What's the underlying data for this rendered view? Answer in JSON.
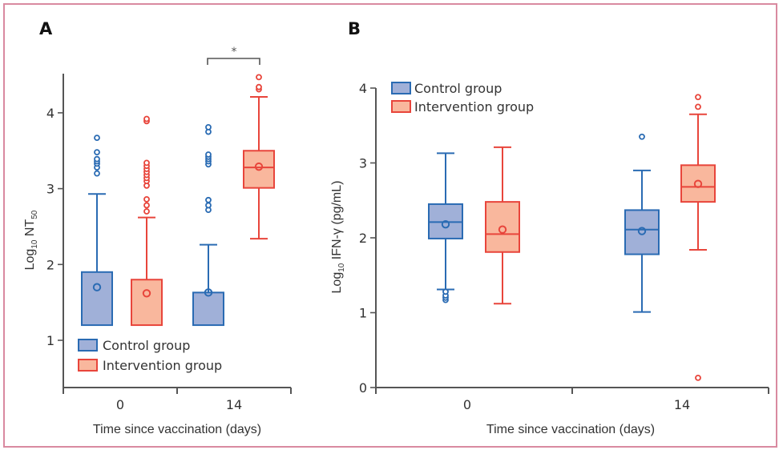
{
  "colors": {
    "control_fill": "#a0b0d8",
    "control_stroke": "#2a6bb3",
    "intervention_fill": "#f9b79d",
    "intervention_stroke": "#e8453b",
    "axis": "#555555",
    "frame": "#d98aa0"
  },
  "chart_data": [
    {
      "panel": "A",
      "type": "box",
      "title": "A",
      "xlabel": "Time since vaccination (days)",
      "ylabel_main": "Log",
      "ylabel_sub": "10",
      "ylabel_main2": " NT",
      "ylabel_sub2": "50",
      "categories": [
        "0",
        "14"
      ],
      "yticks": [
        "1",
        "2",
        "3",
        "4"
      ],
      "ylim": [
        0.35,
        4.55
      ],
      "legend": [
        "Control group",
        "Intervention group"
      ],
      "legend_position": "bottom-left",
      "significance": {
        "between": [
          "Control group 14",
          "Intervention group 14"
        ],
        "label": "*"
      },
      "series": [
        {
          "name": "Control group",
          "boxes": [
            {
              "category": "0",
              "whisker_low": 1.2,
              "q1": 1.2,
              "median": 1.2,
              "q3": 1.9,
              "whisker_high": 2.93,
              "mean": 1.7,
              "outliers": [
                3.2,
                3.28,
                3.33,
                3.36,
                3.39,
                3.48,
                3.67
              ]
            },
            {
              "category": "14",
              "whisker_low": 1.2,
              "q1": 1.2,
              "median": 1.2,
              "q3": 1.63,
              "whisker_high": 2.26,
              "mean": 1.63,
              "outliers": [
                2.72,
                2.78,
                2.85,
                3.32,
                3.36,
                3.39,
                3.42,
                3.45,
                3.75,
                3.81
              ]
            }
          ]
        },
        {
          "name": "Intervention group",
          "boxes": [
            {
              "category": "0",
              "whisker_low": 1.2,
              "q1": 1.2,
              "median": 1.2,
              "q3": 1.8,
              "whisker_high": 2.62,
              "mean": 1.62,
              "outliers": [
                2.7,
                2.78,
                2.86,
                3.04,
                3.1,
                3.14,
                3.18,
                3.22,
                3.26,
                3.3,
                3.34,
                3.89,
                3.92
              ]
            },
            {
              "category": "14",
              "whisker_low": 2.34,
              "q1": 3.01,
              "median": 3.28,
              "q3": 3.5,
              "whisker_high": 4.21,
              "mean": 3.29,
              "outliers": [
                4.31,
                4.34,
                4.47
              ]
            }
          ]
        }
      ]
    },
    {
      "panel": "B",
      "type": "box",
      "title": "B",
      "xlabel": "Time since vaccination (days)",
      "ylabel_main": "Log",
      "ylabel_sub": "10",
      "ylabel_main2": " IFN-γ (pg/mL)",
      "ylabel_sub2": "",
      "categories": [
        "0",
        "14"
      ],
      "yticks": [
        "0",
        "1",
        "2",
        "3",
        "4"
      ],
      "ylim": [
        0,
        4
      ],
      "legend": [
        "Control group",
        "Intervention group"
      ],
      "legend_position": "top-left",
      "series": [
        {
          "name": "Control group",
          "boxes": [
            {
              "category": "0",
              "whisker_low": 1.31,
              "q1": 1.99,
              "median": 2.21,
              "q3": 2.45,
              "whisker_high": 3.13,
              "mean": 2.18,
              "outliers": [
                1.17,
                1.2,
                1.23,
                1.28
              ]
            },
            {
              "category": "14",
              "whisker_low": 1.01,
              "q1": 1.78,
              "median": 2.11,
              "q3": 2.37,
              "whisker_high": 2.9,
              "mean": 2.09,
              "outliers": [
                3.35
              ]
            }
          ]
        },
        {
          "name": "Intervention group",
          "boxes": [
            {
              "category": "0",
              "whisker_low": 1.12,
              "q1": 1.81,
              "median": 2.05,
              "q3": 2.48,
              "whisker_high": 3.21,
              "mean": 2.11,
              "outliers": []
            },
            {
              "category": "14",
              "whisker_low": 1.84,
              "q1": 2.48,
              "median": 2.68,
              "q3": 2.97,
              "whisker_high": 3.65,
              "mean": 2.72,
              "outliers": [
                0.13,
                3.75,
                3.88
              ]
            }
          ]
        }
      ]
    }
  ]
}
